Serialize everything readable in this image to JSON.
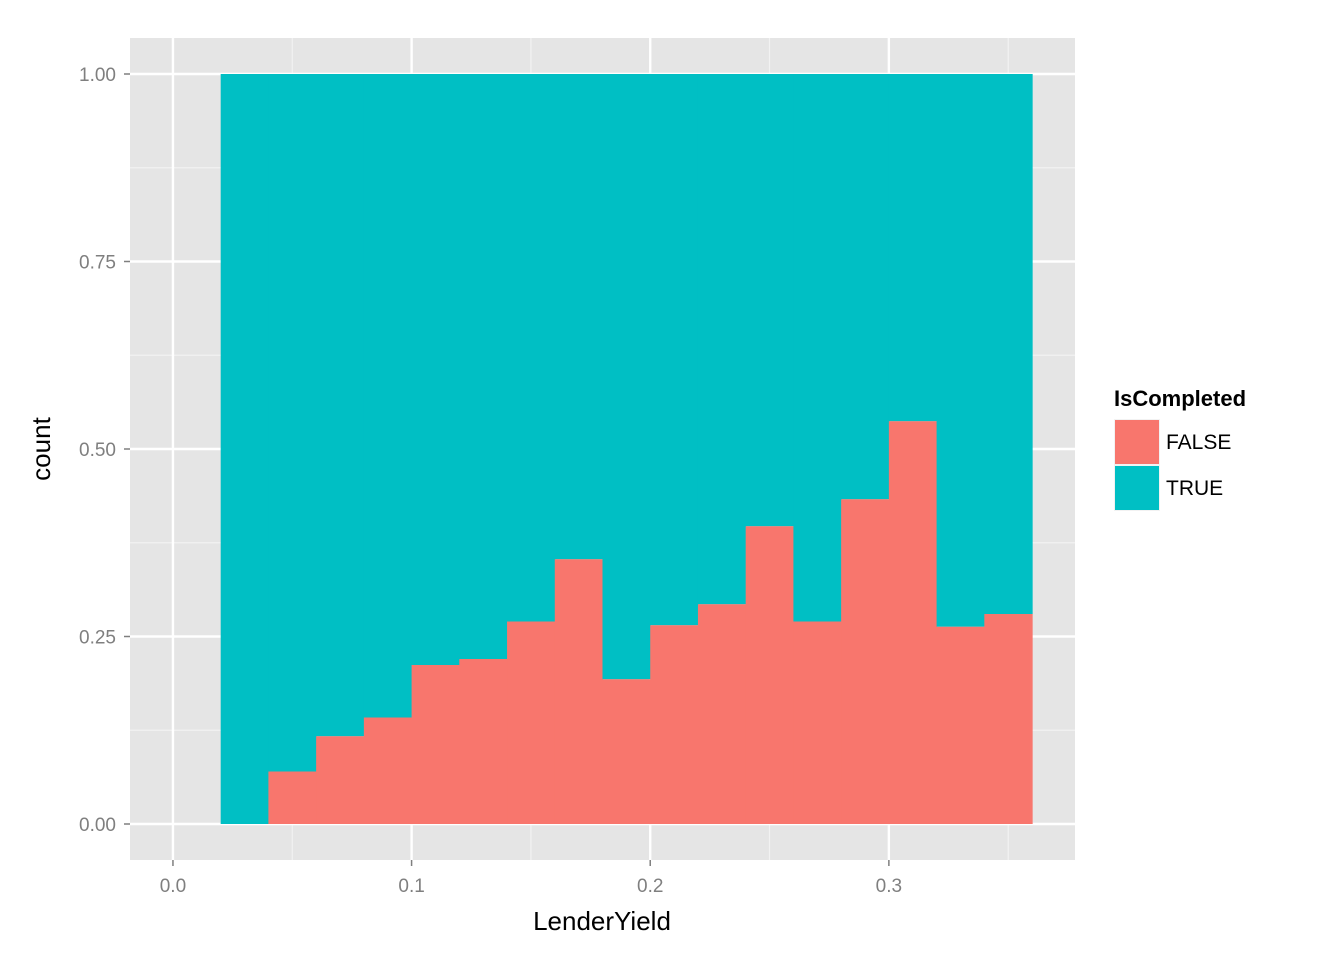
{
  "chart_data": {
    "type": "bar",
    "subtype": "histogram-fill-stacked",
    "xlabel": "LenderYield",
    "ylabel": "count",
    "xlim": [
      -0.018,
      0.378
    ],
    "ylim": [
      -0.048,
      1.048
    ],
    "x_ticks": [
      0.0,
      0.1,
      0.2,
      0.3
    ],
    "x_tick_labels": [
      "0.0",
      "0.1",
      "0.2",
      "0.3"
    ],
    "y_ticks": [
      0.0,
      0.25,
      0.5,
      0.75,
      1.0
    ],
    "y_tick_labels": [
      "0.00",
      "0.25",
      "0.50",
      "0.75",
      "1.00"
    ],
    "bin_edges": [
      0.02,
      0.04,
      0.06,
      0.08,
      0.1,
      0.12,
      0.14,
      0.16,
      0.18,
      0.2,
      0.22,
      0.24,
      0.26,
      0.28,
      0.3,
      0.32,
      0.34,
      0.36
    ],
    "series": [
      {
        "name": "FALSE",
        "color": "#F8766D",
        "values": [
          0.0,
          0.07,
          0.117,
          0.142,
          0.212,
          0.22,
          0.27,
          0.353,
          0.193,
          0.265,
          0.293,
          0.397,
          0.27,
          0.433,
          0.537,
          0.263,
          0.28
        ]
      },
      {
        "name": "TRUE",
        "color": "#00BFC4",
        "values": [
          1.0,
          0.93,
          0.883,
          0.858,
          0.788,
          0.78,
          0.73,
          0.647,
          0.807,
          0.735,
          0.707,
          0.603,
          0.73,
          0.567,
          0.463,
          0.737,
          0.72
        ]
      }
    ],
    "stacking": "fill",
    "grid": true,
    "legend": {
      "title": "IsCompleted",
      "position": "right",
      "items": [
        {
          "label": "FALSE",
          "color": "#F8766D"
        },
        {
          "label": "TRUE",
          "color": "#00BFC4"
        }
      ]
    },
    "panel_background": "#E5E5E5",
    "grid_color": "#FFFFFF"
  }
}
